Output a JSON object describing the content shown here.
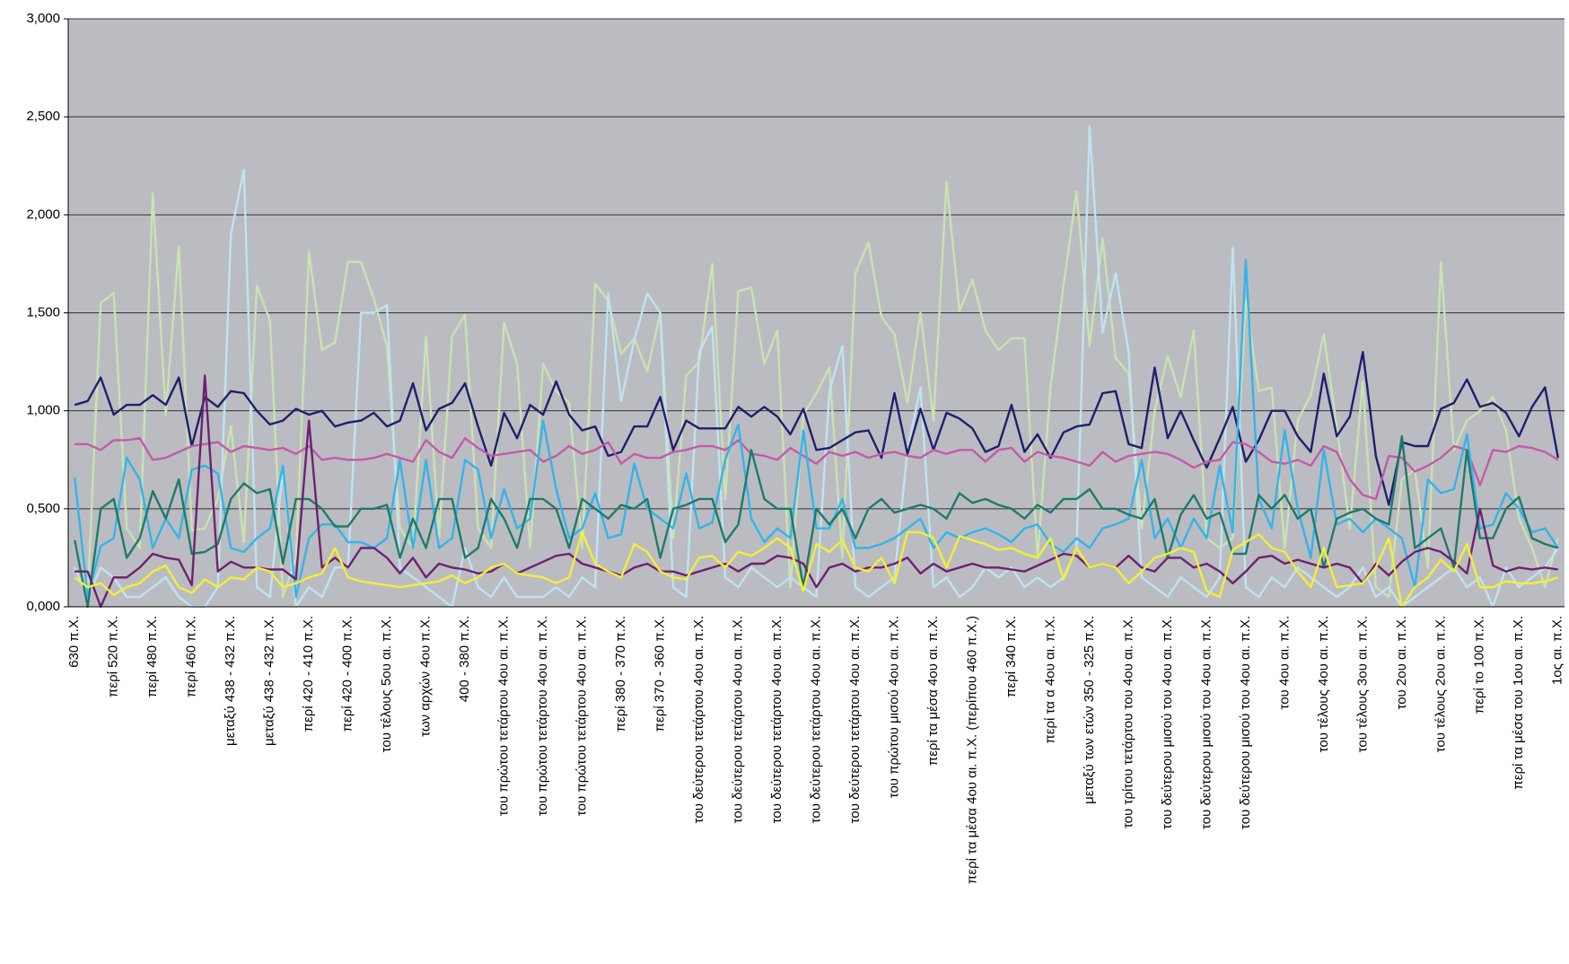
{
  "chart_data": {
    "type": "line",
    "categories": [
      "630 π.Χ.",
      null,
      null,
      "περί 520 π.Χ.",
      null,
      null,
      "περί 480 π.Χ.",
      null,
      null,
      "περί 460 π.Χ.",
      null,
      null,
      "μεταξύ 438 - 432 π.Χ.",
      null,
      null,
      "μεταξύ 438 - 432 π.Χ.",
      null,
      null,
      "περί 420 - 410 π.Χ.",
      null,
      null,
      "περί 420 - 400 π.Χ.",
      null,
      null,
      "του τέλους 5ου αι. π.Χ.",
      null,
      null,
      "των αρχών 4ου π.Χ.",
      null,
      null,
      "400 - 380 π.Χ.",
      null,
      null,
      "του πρώτου τετάρτου 4ου αι. π.Χ.",
      null,
      null,
      "του πρώτου τετάρτου 4ου αι. π.Χ.",
      null,
      null,
      "του πρώτου τετάρτου 4ου αι. π.Χ.",
      null,
      null,
      "περί 380 - 370 π.Χ.",
      null,
      null,
      "περί 370 - 360 π.Χ.",
      null,
      null,
      "του δεύτερου τετάρτου 4ου αι. π.Χ.",
      null,
      null,
      "του δεύτερου τετάρτου 4ου αι. π.Χ.",
      null,
      null,
      "του δεύτερου τετάρτου 4ου αι. π.Χ.",
      null,
      null,
      "του δεύτερου τετάρτου 4ου αι. π.Χ.",
      null,
      null,
      "του δεύτερου τετάρτου 4ου αι. π.Χ.",
      null,
      null,
      "του πρώτου μισού 4ου αι. π.Χ.",
      null,
      null,
      "περί τα μέσα 4ου αι. π.Χ.",
      null,
      null,
      "περί τα μέσα 4ου αι. π.Χ. (περίπου 460 π.Χ.)",
      null,
      null,
      "περί 340 π.Χ.",
      null,
      null,
      "περί τα      α 4ου αι. π.Χ.",
      null,
      null,
      "μεταξύ των ετών 350 - 325 π.Χ.",
      null,
      null,
      "του τρίτου τετάρτου του 4ου αι. π.Χ.",
      null,
      null,
      "του δεύτερου μισού του 4ου αι. π.Χ.",
      null,
      null,
      "του δεύτερου μισού του 4ου αι. π.Χ.",
      null,
      null,
      "του δεύτερου μισού του 4ου αι. π.Χ.",
      null,
      null,
      "του 4ου αι. π.Χ.",
      null,
      null,
      "του τέλους 4ου αι. π.Χ.",
      null,
      null,
      "του τέλους 3ου αι. π.Χ.",
      null,
      null,
      "του 2ου αι. π.Χ.",
      null,
      null,
      "του τέλους 2ου αι. π.Χ.",
      null,
      null,
      "περί το 100 π.Χ.",
      null,
      null,
      "περί τα μέσα του 1ου αι. π.Χ.",
      null,
      null,
      "1ος αι. π.Χ."
    ],
    "series": [
      {
        "color": "#c9e2b3",
        "values": [
          0.32,
          0.05,
          1.55,
          1.6,
          0.4,
          0.3,
          2.11,
          0.98,
          1.84,
          0.39,
          0.4,
          0.55,
          0.92,
          0.33,
          1.64,
          1.46,
          0.05,
          0.25,
          1.81,
          1.31,
          1.35,
          1.76,
          1.76,
          1.57,
          1.33,
          0.4,
          0.3,
          1.38,
          0.35,
          1.38,
          1.49,
          0.4,
          0.3,
          1.45,
          1.24,
          0.3,
          1.24,
          1.1,
          1.04,
          0.3,
          1.65,
          1.56,
          1.29,
          1.37,
          1.2,
          1.5,
          0.35,
          1.18,
          1.25,
          1.75,
          0.55,
          1.61,
          1.63,
          1.24,
          1.41,
          0.1,
          0.98,
          1.09,
          1.22,
          0.25,
          1.7,
          1.86,
          1.48,
          1.39,
          1.04,
          1.5,
          0.95,
          2.17,
          1.51,
          1.67,
          1.41,
          1.31,
          1.37,
          1.37,
          0.25,
          1.12,
          1.64,
          2.12,
          1.33,
          1.88,
          1.27,
          1.19,
          0.4,
          1.0,
          1.28,
          1.07,
          1.41,
          0.35,
          0.3,
          0.35,
          1.56,
          1.1,
          1.12,
          0.3,
          0.95,
          1.08,
          1.39,
          0.92,
          0.4,
          1.15,
          0.1,
          0.05,
          0.65,
          0.7,
          0.2,
          1.76,
          0.8,
          0.95,
          1.0,
          1.07,
          0.9,
          0.45,
          0.3,
          0.1,
          0.35
        ]
      },
      {
        "color": "#bfe3f2",
        "values": [
          0.2,
          0.05,
          0.2,
          0.15,
          0.05,
          0.05,
          0.1,
          0.15,
          0.05,
          0.0,
          0.0,
          0.1,
          1.9,
          2.23,
          0.1,
          0.05,
          0.7,
          0.0,
          0.1,
          0.05,
          0.2,
          0.2,
          1.5,
          1.5,
          1.54,
          0.2,
          0.15,
          0.1,
          0.05,
          0.0,
          0.3,
          0.1,
          0.05,
          0.15,
          0.05,
          0.05,
          0.05,
          0.1,
          0.05,
          0.15,
          0.1,
          1.6,
          1.05,
          1.36,
          1.6,
          1.5,
          0.1,
          0.05,
          1.3,
          1.43,
          0.15,
          0.1,
          0.2,
          0.15,
          0.1,
          0.15,
          0.1,
          0.05,
          1.1,
          1.33,
          0.1,
          0.05,
          0.1,
          0.15,
          0.8,
          1.12,
          0.1,
          0.15,
          0.05,
          0.1,
          0.2,
          0.15,
          0.2,
          0.1,
          0.15,
          0.1,
          0.15,
          0.3,
          2.45,
          1.4,
          1.7,
          1.3,
          0.15,
          0.1,
          0.05,
          0.15,
          0.1,
          0.05,
          0.15,
          1.83,
          0.1,
          0.05,
          0.15,
          0.1,
          0.2,
          0.15,
          0.1,
          0.05,
          0.1,
          0.2,
          0.05,
          0.1,
          0.0,
          0.05,
          0.1,
          0.15,
          0.2,
          0.1,
          0.15,
          0.0,
          0.2,
          0.1,
          0.15,
          0.2,
          0.3
        ]
      },
      {
        "color": "#1f1f6e",
        "values": [
          1.03,
          1.05,
          1.17,
          0.98,
          1.03,
          1.03,
          1.08,
          1.03,
          1.17,
          0.82,
          1.07,
          1.02,
          1.1,
          1.09,
          1.0,
          0.93,
          0.95,
          1.01,
          0.98,
          1.0,
          0.92,
          0.94,
          0.95,
          0.99,
          0.92,
          0.95,
          1.14,
          0.9,
          1.01,
          1.04,
          1.14,
          0.92,
          0.72,
          0.99,
          0.86,
          1.03,
          0.98,
          1.15,
          0.98,
          0.9,
          0.92,
          0.77,
          0.79,
          0.92,
          0.92,
          1.07,
          0.8,
          0.95,
          0.91,
          0.91,
          0.91,
          1.02,
          0.97,
          1.02,
          0.97,
          0.88,
          1.01,
          0.8,
          0.81,
          0.85,
          0.89,
          0.9,
          0.76,
          1.09,
          0.78,
          1.01,
          0.8,
          0.99,
          0.96,
          0.91,
          0.79,
          0.82,
          1.03,
          0.79,
          0.88,
          0.76,
          0.89,
          0.92,
          0.93,
          1.09,
          1.1,
          0.83,
          0.81,
          1.22,
          0.86,
          1.0,
          0.85,
          0.71,
          0.86,
          1.02,
          0.74,
          0.85,
          1.0,
          1.0,
          0.87,
          0.79,
          1.19,
          0.87,
          0.97,
          1.3,
          0.77,
          0.52,
          0.84,
          0.82,
          0.82,
          1.01,
          1.04,
          1.16,
          1.02,
          1.04,
          0.99,
          0.87,
          1.02,
          1.12,
          0.76
        ]
      },
      {
        "color": "#c45aa8",
        "values": [
          0.83,
          0.83,
          0.8,
          0.85,
          0.85,
          0.86,
          0.75,
          0.76,
          0.79,
          0.82,
          0.83,
          0.84,
          0.79,
          0.82,
          0.81,
          0.8,
          0.81,
          0.78,
          0.82,
          0.75,
          0.76,
          0.75,
          0.75,
          0.76,
          0.78,
          0.76,
          0.74,
          0.85,
          0.79,
          0.76,
          0.86,
          0.81,
          0.77,
          0.78,
          0.79,
          0.8,
          0.74,
          0.77,
          0.82,
          0.78,
          0.8,
          0.84,
          0.73,
          0.78,
          0.76,
          0.76,
          0.79,
          0.8,
          0.82,
          0.82,
          0.8,
          0.85,
          0.78,
          0.77,
          0.75,
          0.81,
          0.77,
          0.73,
          0.79,
          0.77,
          0.79,
          0.76,
          0.78,
          0.79,
          0.77,
          0.76,
          0.8,
          0.78,
          0.8,
          0.8,
          0.74,
          0.8,
          0.81,
          0.74,
          0.79,
          0.77,
          0.76,
          0.74,
          0.72,
          0.79,
          0.74,
          0.77,
          0.78,
          0.79,
          0.78,
          0.75,
          0.71,
          0.74,
          0.75,
          0.84,
          0.83,
          0.79,
          0.74,
          0.73,
          0.75,
          0.72,
          0.82,
          0.79,
          0.65,
          0.57,
          0.55,
          0.77,
          0.76,
          0.69,
          0.72,
          0.76,
          0.82,
          0.8,
          0.62,
          0.8,
          0.79,
          0.82,
          0.81,
          0.79,
          0.75
        ]
      },
      {
        "color": "#33b4ea",
        "values": [
          0.66,
          0.05,
          0.31,
          0.35,
          0.76,
          0.65,
          0.3,
          0.45,
          0.35,
          0.7,
          0.72,
          0.68,
          0.3,
          0.28,
          0.35,
          0.4,
          0.72,
          0.05,
          0.35,
          0.42,
          0.42,
          0.33,
          0.33,
          0.3,
          0.35,
          0.75,
          0.3,
          0.75,
          0.3,
          0.35,
          0.75,
          0.7,
          0.35,
          0.6,
          0.4,
          0.45,
          0.95,
          0.6,
          0.35,
          0.4,
          0.58,
          0.35,
          0.37,
          0.73,
          0.5,
          0.45,
          0.4,
          0.68,
          0.4,
          0.43,
          0.75,
          0.93,
          0.45,
          0.33,
          0.4,
          0.35,
          0.9,
          0.4,
          0.4,
          0.55,
          0.3,
          0.3,
          0.32,
          0.35,
          0.4,
          0.45,
          0.3,
          0.38,
          0.35,
          0.38,
          0.4,
          0.37,
          0.33,
          0.4,
          0.42,
          0.32,
          0.28,
          0.35,
          0.3,
          0.4,
          0.42,
          0.45,
          0.75,
          0.35,
          0.45,
          0.3,
          0.45,
          0.35,
          0.72,
          0.38,
          1.77,
          0.55,
          0.4,
          0.9,
          0.5,
          0.25,
          0.8,
          0.42,
          0.45,
          0.38,
          0.45,
          0.4,
          0.35,
          0.1,
          0.65,
          0.58,
          0.6,
          0.88,
          0.4,
          0.42,
          0.58,
          0.5,
          0.38,
          0.4,
          0.3
        ]
      },
      {
        "color": "#1f7a6a",
        "values": [
          0.34,
          0.0,
          0.5,
          0.55,
          0.25,
          0.35,
          0.59,
          0.45,
          0.65,
          0.27,
          0.28,
          0.32,
          0.55,
          0.63,
          0.58,
          0.6,
          0.22,
          0.55,
          0.55,
          0.5,
          0.41,
          0.41,
          0.5,
          0.5,
          0.52,
          0.25,
          0.45,
          0.3,
          0.55,
          0.55,
          0.25,
          0.3,
          0.55,
          0.45,
          0.3,
          0.55,
          0.55,
          0.5,
          0.3,
          0.55,
          0.5,
          0.45,
          0.52,
          0.5,
          0.55,
          0.25,
          0.5,
          0.52,
          0.55,
          0.55,
          0.33,
          0.42,
          0.8,
          0.55,
          0.5,
          0.5,
          0.1,
          0.5,
          0.42,
          0.5,
          0.35,
          0.5,
          0.55,
          0.48,
          0.5,
          0.52,
          0.5,
          0.45,
          0.58,
          0.53,
          0.55,
          0.52,
          0.5,
          0.45,
          0.52,
          0.48,
          0.55,
          0.55,
          0.6,
          0.5,
          0.5,
          0.47,
          0.45,
          0.55,
          0.25,
          0.47,
          0.57,
          0.45,
          0.48,
          0.27,
          0.27,
          0.57,
          0.5,
          0.57,
          0.45,
          0.5,
          0.2,
          0.45,
          0.48,
          0.5,
          0.45,
          0.42,
          0.87,
          0.3,
          0.35,
          0.4,
          0.2,
          0.8,
          0.35,
          0.35,
          0.5,
          0.56,
          0.35,
          0.32,
          0.3
        ]
      },
      {
        "color": "#6e2170",
        "values": [
          0.18,
          0.18,
          0.0,
          0.15,
          0.15,
          0.2,
          0.27,
          0.25,
          0.24,
          0.11,
          1.18,
          0.18,
          0.23,
          0.2,
          0.2,
          0.19,
          0.19,
          0.14,
          0.95,
          0.2,
          0.25,
          0.2,
          0.3,
          0.3,
          0.25,
          0.17,
          0.25,
          0.15,
          0.22,
          0.2,
          0.19,
          0.17,
          0.18,
          0.22,
          0.17,
          0.2,
          0.23,
          0.26,
          0.27,
          0.22,
          0.2,
          0.18,
          0.16,
          0.2,
          0.22,
          0.18,
          0.18,
          0.16,
          0.18,
          0.2,
          0.22,
          0.18,
          0.22,
          0.22,
          0.26,
          0.25,
          0.22,
          0.1,
          0.2,
          0.22,
          0.18,
          0.2,
          0.2,
          0.22,
          0.25,
          0.17,
          0.22,
          0.18,
          0.2,
          0.22,
          0.2,
          0.2,
          0.19,
          0.18,
          0.21,
          0.24,
          0.27,
          0.26,
          0.2,
          0.22,
          0.2,
          0.26,
          0.2,
          0.18,
          0.25,
          0.25,
          0.2,
          0.22,
          0.18,
          0.12,
          0.18,
          0.25,
          0.26,
          0.22,
          0.24,
          0.22,
          0.2,
          0.22,
          0.2,
          0.12,
          0.22,
          0.16,
          0.23,
          0.28,
          0.3,
          0.28,
          0.23,
          0.17,
          0.5,
          0.21,
          0.18,
          0.2,
          0.19,
          0.2,
          0.19
        ]
      },
      {
        "color": "#f2ef3a",
        "values": [
          0.15,
          0.1,
          0.12,
          0.06,
          0.1,
          0.12,
          0.18,
          0.21,
          0.1,
          0.07,
          0.14,
          0.1,
          0.15,
          0.14,
          0.2,
          0.18,
          0.1,
          0.12,
          0.15,
          0.17,
          0.3,
          0.15,
          0.13,
          0.12,
          0.11,
          0.1,
          0.11,
          0.12,
          0.13,
          0.16,
          0.12,
          0.15,
          0.2,
          0.22,
          0.17,
          0.16,
          0.15,
          0.12,
          0.15,
          0.38,
          0.22,
          0.18,
          0.15,
          0.32,
          0.28,
          0.18,
          0.15,
          0.14,
          0.25,
          0.26,
          0.2,
          0.28,
          0.26,
          0.3,
          0.35,
          0.3,
          0.08,
          0.32,
          0.28,
          0.34,
          0.2,
          0.18,
          0.25,
          0.12,
          0.38,
          0.38,
          0.35,
          0.2,
          0.36,
          0.34,
          0.32,
          0.29,
          0.3,
          0.27,
          0.25,
          0.35,
          0.14,
          0.3,
          0.2,
          0.22,
          0.2,
          0.12,
          0.18,
          0.25,
          0.27,
          0.3,
          0.28,
          0.08,
          0.05,
          0.29,
          0.33,
          0.37,
          0.3,
          0.28,
          0.18,
          0.1,
          0.3,
          0.1,
          0.11,
          0.12,
          0.2,
          0.35,
          0.0,
          0.1,
          0.15,
          0.24,
          0.18,
          0.32,
          0.1,
          0.1,
          0.13,
          0.12,
          0.12,
          0.13,
          0.15
        ]
      }
    ],
    "ylim": [
      0,
      3
    ],
    "yticks": [
      {
        "value": 0,
        "label": "0,000"
      },
      {
        "value": 0.5,
        "label": "0,500"
      },
      {
        "value": 1,
        "label": "1,000"
      },
      {
        "value": 1.5,
        "label": "1,500"
      },
      {
        "value": 2,
        "label": "2,000"
      },
      {
        "value": 2.5,
        "label": "2,500"
      },
      {
        "value": 3,
        "label": "3,000"
      }
    ],
    "grid": true
  }
}
